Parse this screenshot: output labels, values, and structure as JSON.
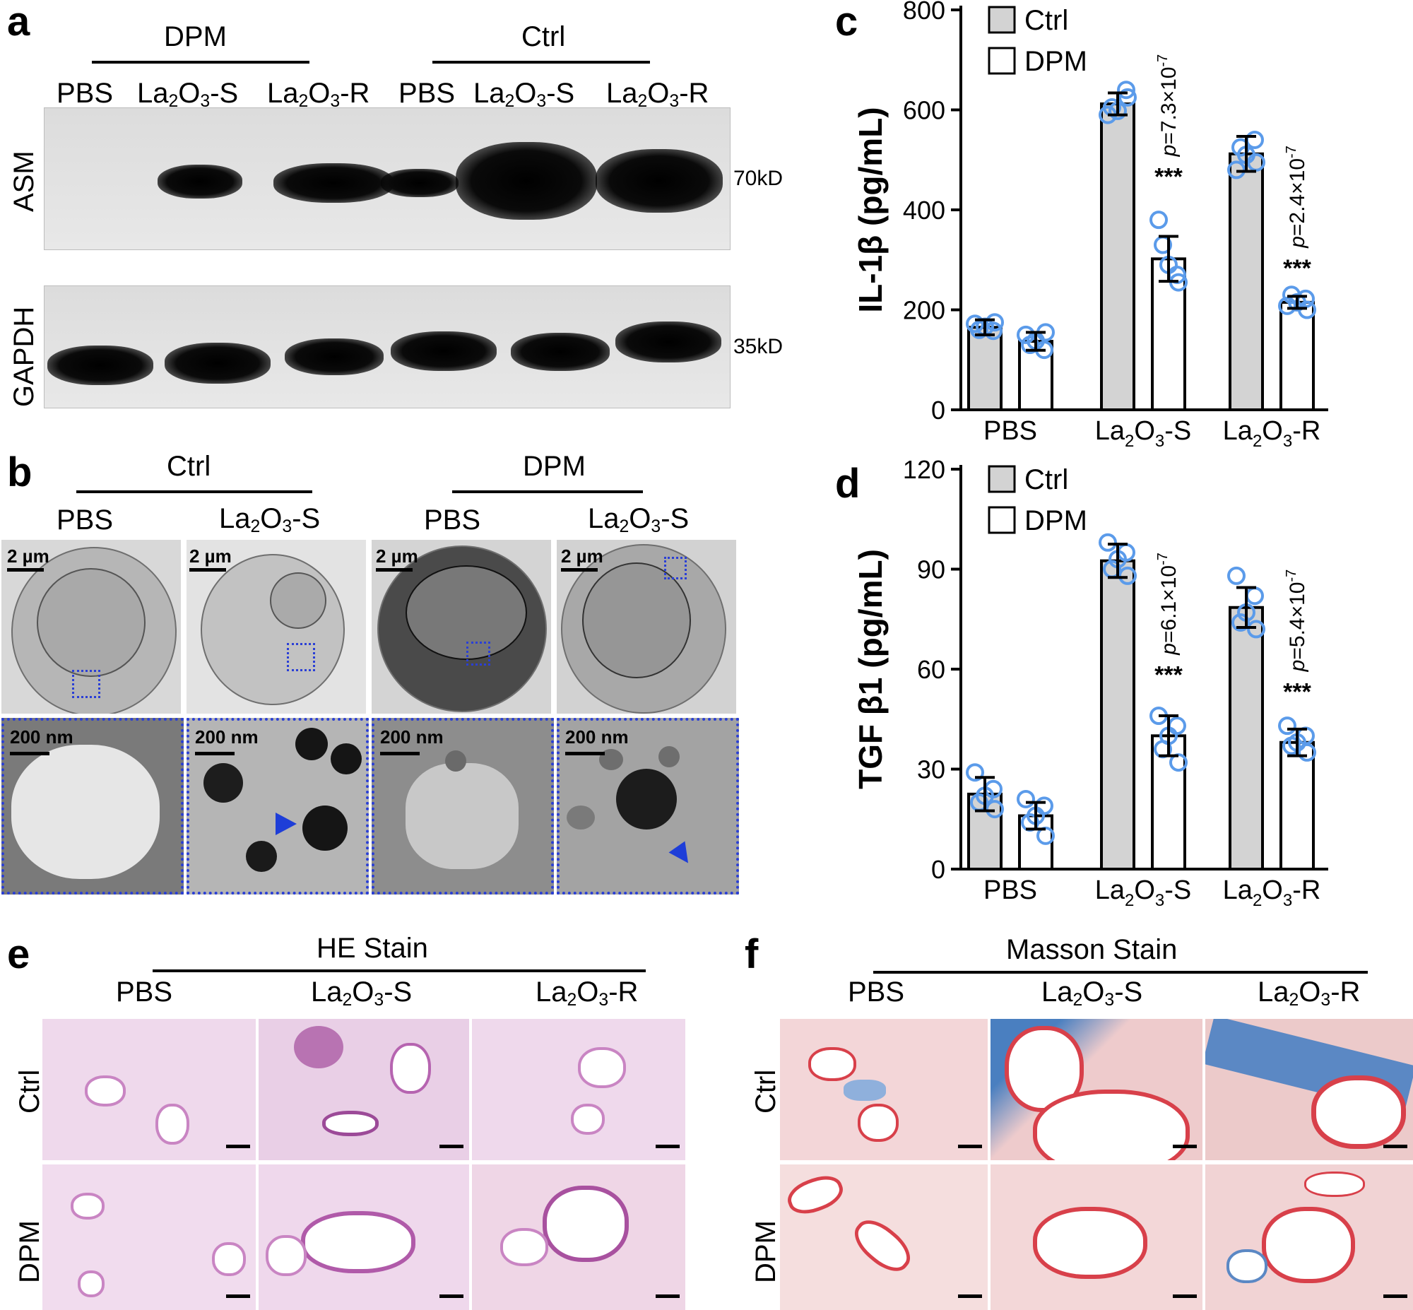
{
  "panel_a": {
    "letter": "a",
    "group_dpm": "DPM",
    "group_ctrl": "Ctrl",
    "lanes": [
      "PBS",
      "La2O3-S",
      "La2O3-R",
      "PBS",
      "La2O3-S",
      "La2O3-R"
    ],
    "blot_asm_label": "ASM",
    "blot_gapdh_label": "GAPDH",
    "asm_kd": "70kD",
    "gapdh_kd": "35kD"
  },
  "panel_b": {
    "letter": "b",
    "group_ctrl": "Ctrl",
    "group_dpm": "DPM",
    "cols": [
      "PBS",
      "La2O3-S",
      "PBS",
      "La2O3-S"
    ],
    "scale_top": "2 µm",
    "scale_bottom": "200 nm"
  },
  "panel_c": {
    "letter": "c"
  },
  "panel_d": {
    "letter": "d"
  },
  "panel_e": {
    "letter": "e",
    "title": "HE Stain",
    "cols": [
      "PBS",
      "La2O3-S",
      "La2O3-R"
    ],
    "rows": [
      "Ctrl",
      "DPM"
    ]
  },
  "panel_f": {
    "letter": "f",
    "title": "Masson Stain",
    "cols": [
      "PBS",
      "La2O3-S",
      "La2O3-R"
    ],
    "rows": [
      "Ctrl",
      "DPM"
    ]
  },
  "colors": {
    "ctrl_bar": "#d3d3d3",
    "dpm_bar": "#ffffff",
    "dots": "#5b9bea",
    "em_box": "#2a3fd6",
    "he_stain": "#c985c3",
    "masson_red": "#d8404a",
    "masson_blue": "#4a7fc0"
  },
  "chart_data": [
    {
      "type": "bar",
      "panel": "c",
      "ylabel": "IL-1β (pg/mL)",
      "ylim": [
        0,
        800
      ],
      "yticks": [
        0,
        200,
        400,
        600,
        800
      ],
      "categories": [
        "PBS",
        "La2O3-S",
        "La2O3-R"
      ],
      "legend": [
        "Ctrl",
        "DPM"
      ],
      "legend_position": "top-left",
      "series": [
        {
          "name": "Ctrl",
          "values": [
            165,
            612,
            512
          ],
          "err": [
            15,
            22,
            35
          ],
          "points": [
            [
              172,
              158,
              160,
              175,
              166
            ],
            [
              590,
              640,
              605,
              625,
              598
            ],
            [
              480,
              540,
              525,
              495,
              510
            ]
          ]
        },
        {
          "name": "DPM",
          "values": [
            137,
            302,
            215
          ],
          "err": [
            18,
            45,
            12
          ],
          "points": [
            [
              150,
              120,
              130,
              155,
              138
            ],
            [
              380,
              270,
              330,
              255,
              290
            ],
            [
              208,
              222,
              230,
              200,
              215
            ]
          ]
        }
      ],
      "annotations": [
        {
          "category": "La2O3-S",
          "stars": "***",
          "p": "p=7.3×10-7"
        },
        {
          "category": "La2O3-R",
          "stars": "***",
          "p": "p=2.4×10-7"
        }
      ]
    },
    {
      "type": "bar",
      "panel": "d",
      "ylabel": "TGF β1 (pg/mL)",
      "ylim": [
        0,
        120
      ],
      "yticks": [
        0,
        30,
        60,
        90,
        120
      ],
      "categories": [
        "PBS",
        "La2O3-S",
        "La2O3-R"
      ],
      "legend": [
        "Ctrl",
        "DPM"
      ],
      "legend_position": "top-left",
      "series": [
        {
          "name": "Ctrl",
          "values": [
            22.5,
            92.5,
            78.5
          ],
          "err": [
            5,
            5,
            6
          ],
          "points": [
            [
              29,
              24,
              20,
              18,
              22
            ],
            [
              98,
              95,
              90,
              88,
              93
            ],
            [
              88,
              82,
              74,
              72,
              77
            ]
          ]
        },
        {
          "name": "DPM",
          "values": [
            16,
            40,
            38
          ],
          "err": [
            4,
            6,
            4
          ],
          "points": [
            [
              21,
              19,
              14,
              10,
              16
            ],
            [
              46,
              43,
              36,
              32,
              40
            ],
            [
              43,
              40,
              37,
              35,
              38
            ]
          ]
        }
      ],
      "annotations": [
        {
          "category": "La2O3-S",
          "stars": "***",
          "p": "p=6.1×10-7"
        },
        {
          "category": "La2O3-R",
          "stars": "***",
          "p": "p=5.4×10-7"
        }
      ]
    }
  ]
}
